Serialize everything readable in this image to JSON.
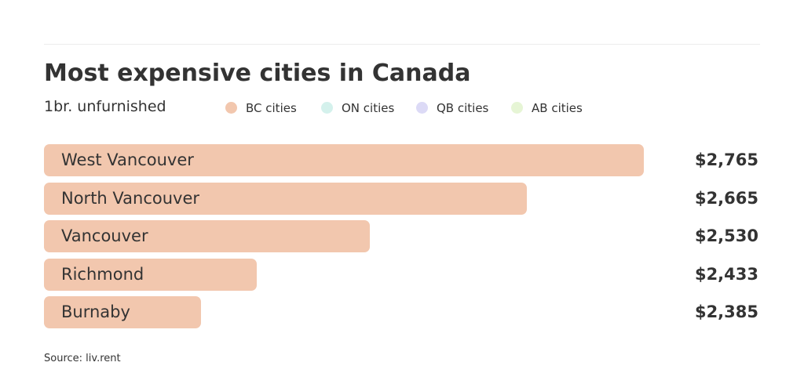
{
  "chart_data": {
    "type": "bar",
    "orientation": "horizontal",
    "title": "Most expensive cities in Canada",
    "subtitle": "1br. unfurnished",
    "legend": {
      "placement": "top",
      "entries": [
        {
          "label": "BC cities",
          "color": "#f2c7ae"
        },
        {
          "label": "ON cities",
          "color": "#d4f1ec"
        },
        {
          "label": "QB cities",
          "color": "#dcdaf6"
        },
        {
          "label": "AB cities",
          "color": "#e6f5d5"
        }
      ]
    },
    "categories": [
      "West Vancouver",
      "North Vancouver",
      "Vancouver",
      "Richmond",
      "Burnaby"
    ],
    "values": [
      2765,
      2665,
      2530,
      2433,
      2385
    ],
    "value_labels": [
      "$2,765",
      "$2,665",
      "$2,530",
      "$2,433",
      "$2,385"
    ],
    "groups": [
      "BC cities",
      "BC cities",
      "BC cities",
      "BC cities",
      "BC cities"
    ],
    "xlim": [
      2250,
      2780
    ],
    "grid": false,
    "source": "Source: liv.rent"
  }
}
